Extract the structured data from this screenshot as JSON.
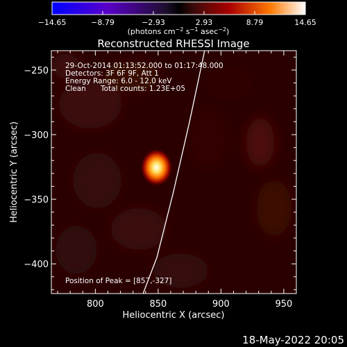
{
  "chart_data": {
    "type": "heatmap",
    "title": "Reconstructed RHESSI Image",
    "xlabel": "Heliocentric X (arcsec)",
    "ylabel": "Heliocentric Y (arcsec)",
    "xlim": [
      765,
      960
    ],
    "ylim": [
      -423,
      -235
    ],
    "x_ticks": [
      800,
      850,
      900,
      950
    ],
    "x_tick_labels": [
      "800",
      "850",
      "900",
      "950"
    ],
    "y_ticks": [
      -250,
      -300,
      -350,
      -400
    ],
    "y_tick_labels": [
      "−250",
      "−300",
      "−350",
      "−400"
    ],
    "colorbar": {
      "range": [
        -14.65,
        14.65
      ],
      "ticks": [
        -14.65,
        -8.79,
        -2.93,
        2.93,
        8.79,
        14.65
      ],
      "tick_labels": [
        "−14.65",
        "−8.79",
        "−2.93",
        "2.93",
        "8.79",
        "14.65"
      ],
      "unit_label": "(photons cm",
      "unit_exp1": "−2",
      "unit_mid": " s",
      "unit_exp2": "−1",
      "unit_tail": " asec",
      "unit_exp3": "−2",
      "unit_close": ")",
      "colors": [
        "#0000ff",
        "#5a00c8",
        "#1e0f2d",
        "#000000",
        "#3c0a0a",
        "#aa0000",
        "#ff7800",
        "#ffffff"
      ]
    },
    "annotations": {
      "line1": "29-Oct-2014 01:13:52.000 to 01:17:48.000",
      "line2": "Detectors: 3F 6F 9F, Att 1",
      "line3": "Energy Range: 6.0 - 12.0 keV",
      "line4_a": "Clean",
      "line4_b": "Total counts: 1.23E+05",
      "peak_text": "Position of Peak = [857,-327]"
    },
    "peak": {
      "x": 857,
      "y": -327,
      "value": 14.65
    },
    "limb_curve": [
      [
        887,
        -235
      ],
      [
        875,
        -290
      ],
      [
        862,
        -345
      ],
      [
        849,
        -395
      ],
      [
        838,
        -423
      ]
    ],
    "timestamp": "18-May-2022 20:05"
  }
}
